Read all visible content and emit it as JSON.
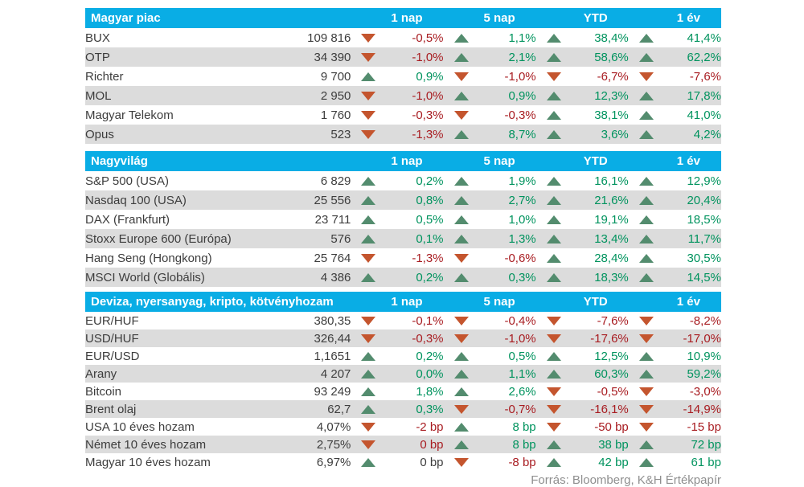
{
  "page": {
    "source_note": "Forrás: Bloomberg, K&H Értékpapír"
  },
  "colors": {
    "header_bg": "#09ade5",
    "header_text": "#ffffff",
    "row_alt": "#dcdcdc",
    "text_dark": "#3d3d3d",
    "pos_text": "#00935e",
    "neg_text": "#a81c21",
    "up": "#538c6e",
    "down": "#c4552e",
    "source_text": "#8f8f8f"
  },
  "chart_data": [
    {
      "type": "table",
      "title": "Magyar piac",
      "columns": [
        "1 nap",
        "5 nap",
        "YTD",
        "1 év"
      ],
      "rows": [
        {
          "name": "BUX",
          "value": "109 816",
          "cells": [
            {
              "dir": "down",
              "text": "-0,5%",
              "tone": "neg"
            },
            {
              "dir": "up",
              "text": "1,1%",
              "tone": "pos"
            },
            {
              "dir": "up",
              "text": "38,4%",
              "tone": "pos"
            },
            {
              "dir": "up",
              "text": "41,4%",
              "tone": "pos"
            }
          ]
        },
        {
          "name": "OTP",
          "value": "34 390",
          "cells": [
            {
              "dir": "down",
              "text": "-1,0%",
              "tone": "neg"
            },
            {
              "dir": "up",
              "text": "2,1%",
              "tone": "pos"
            },
            {
              "dir": "up",
              "text": "58,6%",
              "tone": "pos"
            },
            {
              "dir": "up",
              "text": "62,2%",
              "tone": "pos"
            }
          ]
        },
        {
          "name": "Richter",
          "value": "9 700",
          "cells": [
            {
              "dir": "up",
              "text": "0,9%",
              "tone": "pos"
            },
            {
              "dir": "down",
              "text": "-1,0%",
              "tone": "neg"
            },
            {
              "dir": "down",
              "text": "-6,7%",
              "tone": "neg"
            },
            {
              "dir": "down",
              "text": "-7,6%",
              "tone": "neg"
            }
          ]
        },
        {
          "name": "MOL",
          "value": "2 950",
          "cells": [
            {
              "dir": "down",
              "text": "-1,0%",
              "tone": "neg"
            },
            {
              "dir": "up",
              "text": "0,9%",
              "tone": "pos"
            },
            {
              "dir": "up",
              "text": "12,3%",
              "tone": "pos"
            },
            {
              "dir": "up",
              "text": "17,8%",
              "tone": "pos"
            }
          ]
        },
        {
          "name": "Magyar Telekom",
          "value": "1 760",
          "cells": [
            {
              "dir": "down",
              "text": "-0,3%",
              "tone": "neg"
            },
            {
              "dir": "down",
              "text": "-0,3%",
              "tone": "neg"
            },
            {
              "dir": "up",
              "text": "38,1%",
              "tone": "pos"
            },
            {
              "dir": "up",
              "text": "41,0%",
              "tone": "pos"
            }
          ]
        },
        {
          "name": "Opus",
          "value": "523",
          "cells": [
            {
              "dir": "down",
              "text": "-1,3%",
              "tone": "neg"
            },
            {
              "dir": "up",
              "text": "8,7%",
              "tone": "pos"
            },
            {
              "dir": "up",
              "text": "3,6%",
              "tone": "pos"
            },
            {
              "dir": "up",
              "text": "4,2%",
              "tone": "pos"
            }
          ]
        }
      ]
    },
    {
      "type": "table",
      "title": "Nagyvilág",
      "columns": [
        "1 nap",
        "5 nap",
        "YTD",
        "1 év"
      ],
      "rows": [
        {
          "name": "S&P 500 (USA)",
          "value": "6 829",
          "cells": [
            {
              "dir": "up",
              "text": "0,2%",
              "tone": "pos"
            },
            {
              "dir": "up",
              "text": "1,9%",
              "tone": "pos"
            },
            {
              "dir": "up",
              "text": "16,1%",
              "tone": "pos"
            },
            {
              "dir": "up",
              "text": "12,9%",
              "tone": "pos"
            }
          ]
        },
        {
          "name": "Nasdaq 100 (USA)",
          "value": "25 556",
          "cells": [
            {
              "dir": "up",
              "text": "0,8%",
              "tone": "pos"
            },
            {
              "dir": "up",
              "text": "2,7%",
              "tone": "pos"
            },
            {
              "dir": "up",
              "text": "21,6%",
              "tone": "pos"
            },
            {
              "dir": "up",
              "text": "20,4%",
              "tone": "pos"
            }
          ]
        },
        {
          "name": "DAX (Frankfurt)",
          "value": "23 711",
          "cells": [
            {
              "dir": "up",
              "text": "0,5%",
              "tone": "pos"
            },
            {
              "dir": "up",
              "text": "1,0%",
              "tone": "pos"
            },
            {
              "dir": "up",
              "text": "19,1%",
              "tone": "pos"
            },
            {
              "dir": "up",
              "text": "18,5%",
              "tone": "pos"
            }
          ]
        },
        {
          "name": "Stoxx Europe 600 (Európa)",
          "value": "576",
          "cells": [
            {
              "dir": "up",
              "text": "0,1%",
              "tone": "pos"
            },
            {
              "dir": "up",
              "text": "1,3%",
              "tone": "pos"
            },
            {
              "dir": "up",
              "text": "13,4%",
              "tone": "pos"
            },
            {
              "dir": "up",
              "text": "11,7%",
              "tone": "pos"
            }
          ]
        },
        {
          "name": "Hang Seng (Hongkong)",
          "value": "25 764",
          "cells": [
            {
              "dir": "down",
              "text": "-1,3%",
              "tone": "neg"
            },
            {
              "dir": "down",
              "text": "-0,6%",
              "tone": "neg"
            },
            {
              "dir": "up",
              "text": "28,4%",
              "tone": "pos"
            },
            {
              "dir": "up",
              "text": "30,5%",
              "tone": "pos"
            }
          ]
        },
        {
          "name": "MSCI World (Globális)",
          "value": "4 386",
          "cells": [
            {
              "dir": "up",
              "text": "0,2%",
              "tone": "pos"
            },
            {
              "dir": "up",
              "text": "0,3%",
              "tone": "pos"
            },
            {
              "dir": "up",
              "text": "18,3%",
              "tone": "pos"
            },
            {
              "dir": "up",
              "text": "14,5%",
              "tone": "pos"
            }
          ]
        }
      ]
    },
    {
      "type": "table",
      "title": "Deviza, nyersanyag, kripto, kötvényhozam",
      "columns": [
        "1 nap",
        "5 nap",
        "YTD",
        "1 év"
      ],
      "rows": [
        {
          "name": "EUR/HUF",
          "value": "380,35",
          "cells": [
            {
              "dir": "down",
              "text": "-0,1%",
              "tone": "neg"
            },
            {
              "dir": "down",
              "text": "-0,4%",
              "tone": "neg"
            },
            {
              "dir": "down",
              "text": "-7,6%",
              "tone": "neg"
            },
            {
              "dir": "down",
              "text": "-8,2%",
              "tone": "neg"
            }
          ]
        },
        {
          "name": "USD/HUF",
          "value": "326,44",
          "cells": [
            {
              "dir": "down",
              "text": "-0,3%",
              "tone": "neg"
            },
            {
              "dir": "down",
              "text": "-1,0%",
              "tone": "neg"
            },
            {
              "dir": "down",
              "text": "-17,6%",
              "tone": "neg"
            },
            {
              "dir": "down",
              "text": "-17,0%",
              "tone": "neg"
            }
          ]
        },
        {
          "name": "EUR/USD",
          "value": "1,1651",
          "cells": [
            {
              "dir": "up",
              "text": "0,2%",
              "tone": "pos"
            },
            {
              "dir": "up",
              "text": "0,5%",
              "tone": "pos"
            },
            {
              "dir": "up",
              "text": "12,5%",
              "tone": "pos"
            },
            {
              "dir": "up",
              "text": "10,9%",
              "tone": "pos"
            }
          ]
        },
        {
          "name": "Arany",
          "value": "4 207",
          "cells": [
            {
              "dir": "up",
              "text": "0,0%",
              "tone": "pos"
            },
            {
              "dir": "up",
              "text": "1,1%",
              "tone": "pos"
            },
            {
              "dir": "up",
              "text": "60,3%",
              "tone": "pos"
            },
            {
              "dir": "up",
              "text": "59,2%",
              "tone": "pos"
            }
          ]
        },
        {
          "name": "Bitcoin",
          "value": "93 249",
          "cells": [
            {
              "dir": "up",
              "text": "1,8%",
              "tone": "pos"
            },
            {
              "dir": "up",
              "text": "2,6%",
              "tone": "pos"
            },
            {
              "dir": "down",
              "text": "-0,5%",
              "tone": "neg"
            },
            {
              "dir": "down",
              "text": "-3,0%",
              "tone": "neg"
            }
          ]
        },
        {
          "name": "Brent olaj",
          "value": "62,7",
          "cells": [
            {
              "dir": "up",
              "text": "0,3%",
              "tone": "pos"
            },
            {
              "dir": "down",
              "text": "-0,7%",
              "tone": "neg"
            },
            {
              "dir": "down",
              "text": "-16,1%",
              "tone": "neg"
            },
            {
              "dir": "down",
              "text": "-14,9%",
              "tone": "neg"
            }
          ]
        },
        {
          "name": "USA 10 éves hozam",
          "value": "4,07%",
          "cells": [
            {
              "dir": "down",
              "text": "-2 bp",
              "tone": "neg"
            },
            {
              "dir": "up",
              "text": "8 bp",
              "tone": "pos"
            },
            {
              "dir": "down",
              "text": "-50 bp",
              "tone": "neg"
            },
            {
              "dir": "down",
              "text": "-15 bp",
              "tone": "neg"
            }
          ]
        },
        {
          "name": "Német 10 éves hozam",
          "value": "2,75%",
          "cells": [
            {
              "dir": "down",
              "text": "0 bp",
              "tone": "neg"
            },
            {
              "dir": "up",
              "text": "8 bp",
              "tone": "pos"
            },
            {
              "dir": "up",
              "text": "38 bp",
              "tone": "pos"
            },
            {
              "dir": "up",
              "text": "72 bp",
              "tone": "pos"
            }
          ]
        },
        {
          "name": "Magyar 10 éves hozam",
          "value": "6,97%",
          "cells": [
            {
              "dir": "up",
              "text": "0 bp",
              "tone": "neutral"
            },
            {
              "dir": "down",
              "text": "-8 bp",
              "tone": "neg"
            },
            {
              "dir": "up",
              "text": "42 bp",
              "tone": "pos"
            },
            {
              "dir": "up",
              "text": "61 bp",
              "tone": "pos"
            }
          ]
        }
      ]
    }
  ]
}
